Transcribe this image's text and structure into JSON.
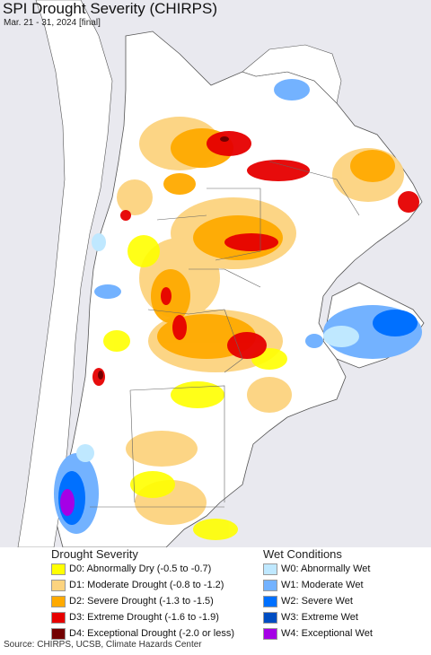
{
  "header": {
    "title": "SPI Drought Severity (CHIRPS)",
    "subtitle": "Mar. 21 - 31, 2024 [final]"
  },
  "legend": {
    "drought_heading": "Drought Severity",
    "wet_heading": "Wet Conditions",
    "drought_items": [
      {
        "label": "D0: Abnormally Dry (-0.5 to -0.7)",
        "color": "#ffff00"
      },
      {
        "label": "D1: Moderate Drought (-0.8 to -1.2)",
        "color": "#fcd37f"
      },
      {
        "label": "D2: Severe Drought (-1.3 to -1.5)",
        "color": "#ffaa00"
      },
      {
        "label": "D3: Extreme Drought (-1.6 to -1.9)",
        "color": "#e60000"
      },
      {
        "label": "D4: Exceptional Drought (-2.0 or less)",
        "color": "#730000"
      }
    ],
    "wet_items": [
      {
        "label": "W0: Abnormally Wet",
        "color": "#bfe8ff"
      },
      {
        "label": "W1: Moderate Wet",
        "color": "#73b2ff"
      },
      {
        "label": "W2: Severe Wet",
        "color": "#0070ff"
      },
      {
        "label": "W3: Extreme Wet",
        "color": "#004dc2"
      },
      {
        "label": "W4: Exceptional Wet",
        "color": "#a500e6"
      }
    ]
  },
  "footer": {
    "source": "Source: CHIRPS, UCSB, Climate Hazards Center"
  }
}
